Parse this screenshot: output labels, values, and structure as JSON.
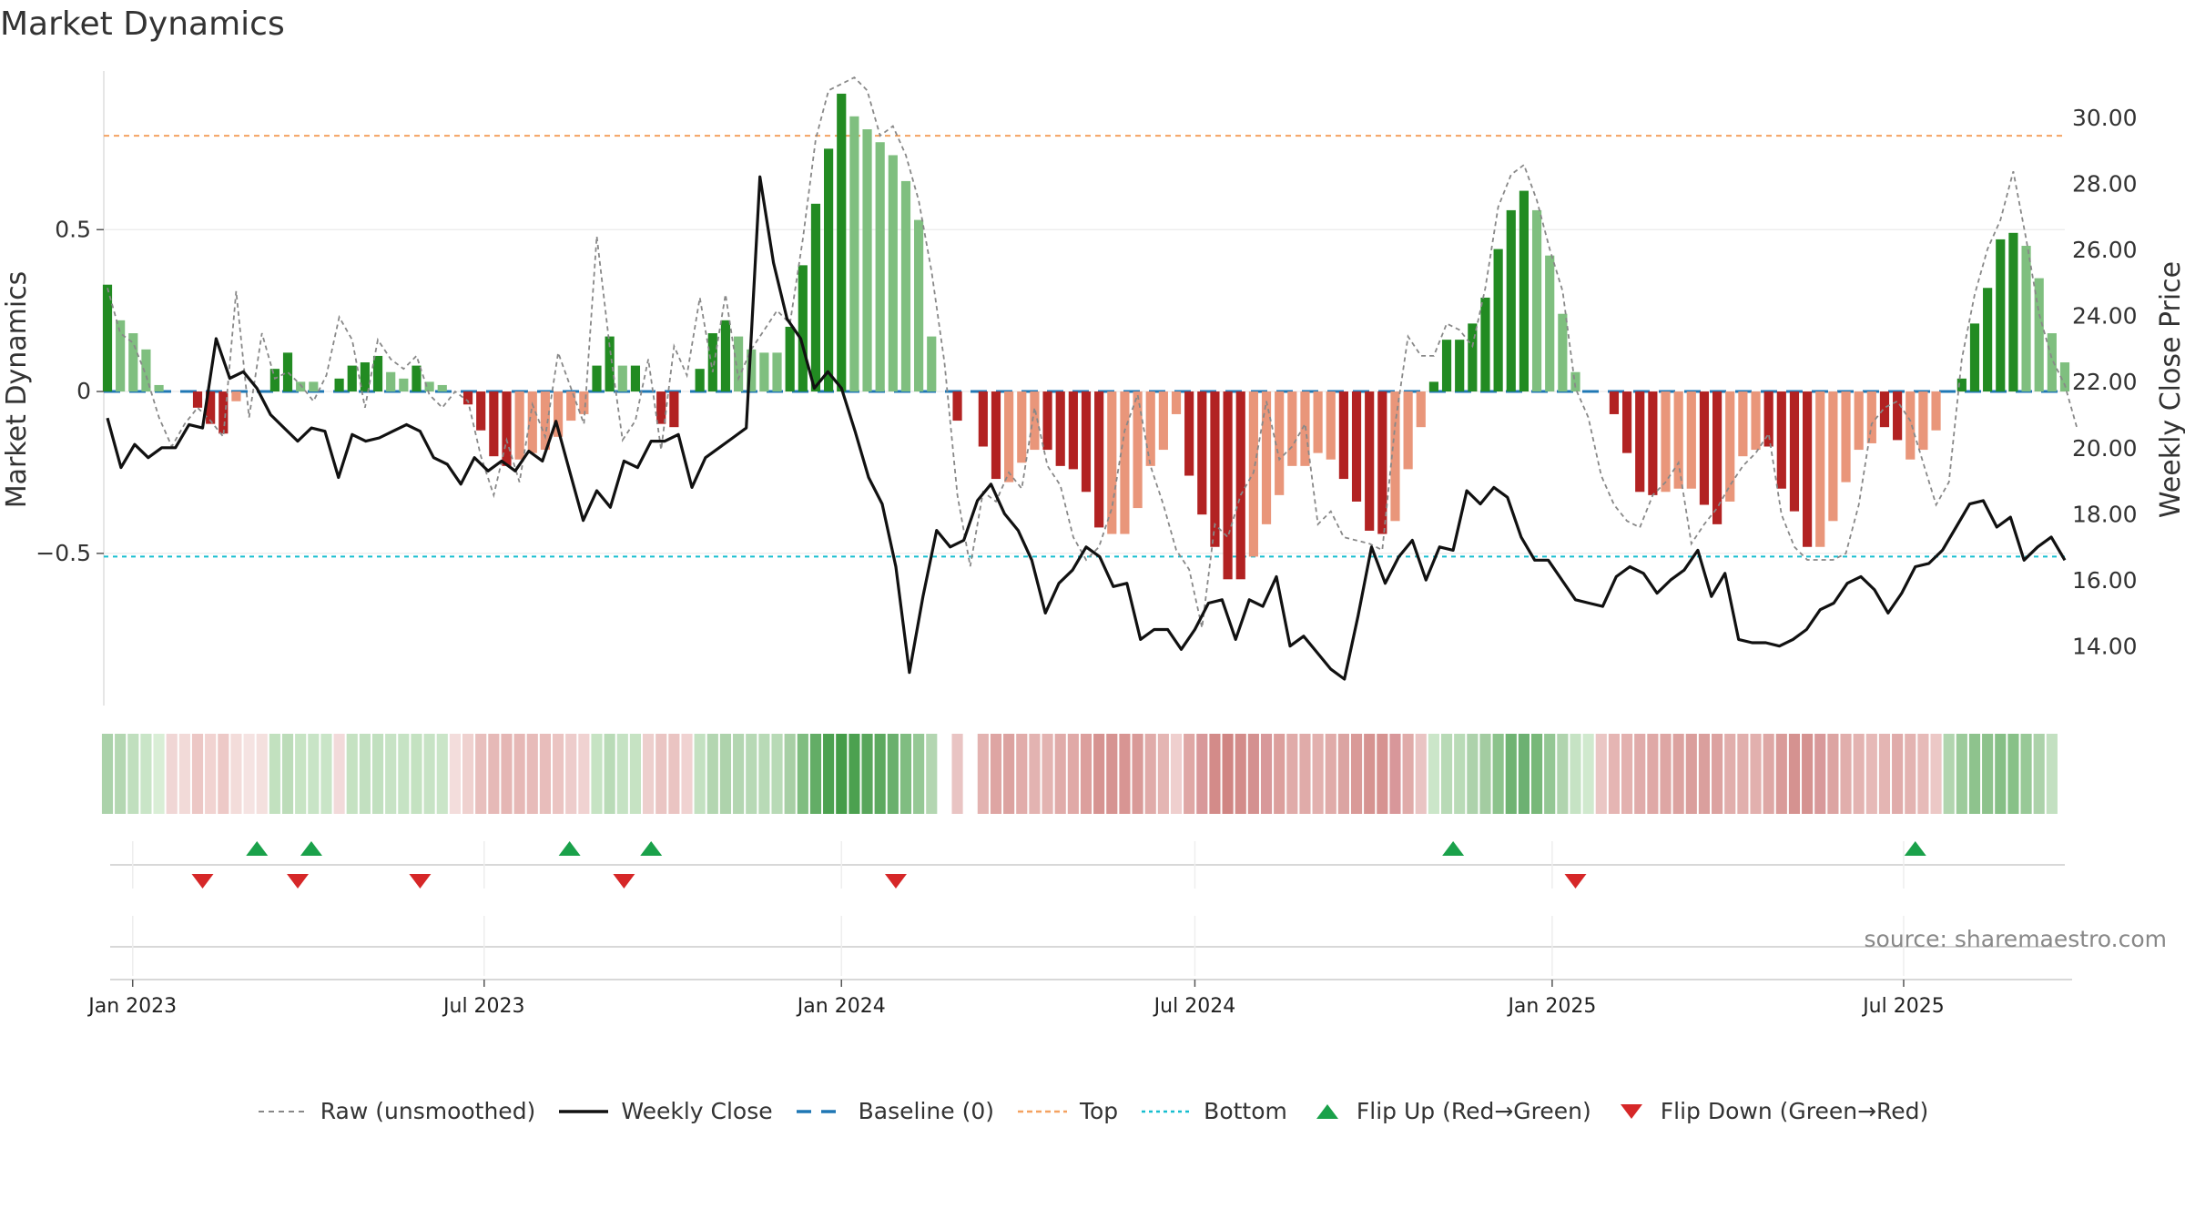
{
  "title": "Market Dynamics",
  "source": "source: sharemaestro.com",
  "colors": {
    "strong_green": "#228b22",
    "light_green": "#7fbf7f",
    "strong_red": "#b22222",
    "light_red": "#e9967a",
    "raw": "#888888",
    "close": "#111111",
    "baseline": "#1f77b4",
    "top": "#f4a261",
    "bottom": "#17becf",
    "flip_up": "#1aa14a",
    "flip_down": "#d62728"
  },
  "legend": [
    {
      "label": "Raw (unsmoothed)",
      "icon": "dashed-gray-line"
    },
    {
      "label": "Weekly Close",
      "icon": "solid-black-line"
    },
    {
      "label": "Baseline (0)",
      "icon": "dashed-blue-line"
    },
    {
      "label": "Top",
      "icon": "dashed-orange-line"
    },
    {
      "label": "Bottom",
      "icon": "dotted-cyan-line"
    },
    {
      "label": "Flip Up (Red→Green)",
      "icon": "triangle-up-icon"
    },
    {
      "label": "Flip Down (Green→Red)",
      "icon": "triangle-down-icon"
    }
  ],
  "chart_data": {
    "type": "bar",
    "title": "Market Dynamics",
    "ylabel": "Market Dynamics",
    "y2label": "Weekly Close Price",
    "ylim": [
      -0.97,
      0.99
    ],
    "y2lim": [
      12.2,
      31.4
    ],
    "yticks": [
      0.5,
      0,
      -0.5
    ],
    "ytick_labels": [
      "0.5",
      "0",
      "−0.5"
    ],
    "y2ticks": [
      30,
      28,
      26,
      24,
      22,
      20,
      18,
      16,
      14
    ],
    "y2tick_labels": [
      "30.00",
      "28.00",
      "26.00",
      "24.00",
      "22.00",
      "20.00",
      "18.00",
      "16.00",
      "14.00"
    ],
    "x_start": "2022-12-19",
    "x_end": "2025-09-22",
    "xtick_dates": [
      "2023-01-01",
      "2023-07-01",
      "2024-01-01",
      "2024-07-01",
      "2025-01-01",
      "2025-07-01"
    ],
    "xtick_labels": [
      "Jan 2023",
      "Jul 2023",
      "Jan 2024",
      "Jul 2024",
      "Jan 2025",
      "Jul 2025"
    ],
    "top_level": 0.79,
    "bottom_level": -0.51,
    "baseline": 0,
    "bars": [
      0.33,
      0.22,
      0.18,
      0.13,
      0.02,
      0,
      0,
      -0.05,
      -0.1,
      -0.13,
      -0.03,
      0,
      0,
      0.07,
      0.12,
      0.03,
      0.03,
      0,
      0.04,
      0.08,
      0.09,
      0.11,
      0.06,
      0.04,
      0.08,
      0.03,
      0.02,
      0,
      -0.04,
      -0.12,
      -0.2,
      -0.23,
      -0.21,
      -0.19,
      -0.18,
      -0.14,
      -0.09,
      -0.07,
      0.08,
      0.17,
      0.08,
      0.08,
      0,
      -0.1,
      -0.11,
      0,
      0.07,
      0.18,
      0.22,
      0.17,
      0.13,
      0.12,
      0.12,
      0.2,
      0.39,
      0.58,
      0.75,
      0.92,
      0.85,
      0.81,
      0.77,
      0.73,
      0.65,
      0.53,
      0.17,
      0,
      -0.09,
      0,
      -0.17,
      -0.27,
      -0.28,
      -0.22,
      -0.18,
      -0.18,
      -0.23,
      -0.24,
      -0.31,
      -0.42,
      -0.44,
      -0.44,
      -0.36,
      -0.23,
      -0.18,
      -0.07,
      -0.26,
      -0.38,
      -0.48,
      -0.58,
      -0.58,
      -0.51,
      -0.41,
      -0.32,
      -0.23,
      -0.23,
      -0.19,
      -0.21,
      -0.27,
      -0.34,
      -0.43,
      -0.44,
      -0.4,
      -0.24,
      -0.11,
      0.03,
      0.16,
      0.16,
      0.21,
      0.29,
      0.44,
      0.56,
      0.62,
      0.56,
      0.42,
      0.24,
      0.06,
      0,
      0,
      -0.07,
      -0.19,
      -0.31,
      -0.32,
      -0.31,
      -0.3,
      -0.3,
      -0.35,
      -0.41,
      -0.34,
      -0.2,
      -0.18,
      -0.17,
      -0.3,
      -0.37,
      -0.48,
      -0.48,
      -0.4,
      -0.28,
      -0.18,
      -0.16,
      -0.11,
      -0.15,
      -0.21,
      -0.18,
      -0.12,
      0,
      0.04,
      0.21,
      0.32,
      0.47,
      0.49,
      0.45,
      0.35,
      0.18,
      0.09
    ],
    "bar_strength": [
      1,
      0,
      0,
      0,
      0,
      0,
      0,
      1,
      1,
      1,
      0,
      0,
      0,
      1,
      1,
      0,
      0,
      0,
      1,
      1,
      1,
      1,
      0,
      0,
      1,
      0,
      0,
      0,
      1,
      1,
      1,
      1,
      0,
      0,
      0,
      0,
      0,
      0,
      1,
      1,
      0,
      1,
      0,
      1,
      1,
      0,
      1,
      1,
      1,
      0,
      0,
      0,
      0,
      1,
      1,
      1,
      1,
      1,
      0,
      0,
      0,
      0,
      0,
      0,
      0,
      0,
      1,
      0,
      1,
      1,
      0,
      0,
      0,
      1,
      1,
      1,
      1,
      1,
      0,
      0,
      0,
      0,
      0,
      0,
      1,
      1,
      1,
      1,
      1,
      0,
      0,
      0,
      0,
      0,
      0,
      0,
      1,
      1,
      1,
      1,
      0,
      0,
      0,
      1,
      1,
      1,
      1,
      1,
      1,
      1,
      1,
      0,
      0,
      0,
      0,
      0,
      0,
      1,
      1,
      1,
      1,
      0,
      0,
      0,
      1,
      1,
      0,
      0,
      0,
      1,
      1,
      1,
      1,
      0,
      0,
      0,
      0,
      0,
      1,
      1,
      0,
      0,
      0,
      0,
      1,
      1,
      1,
      1,
      1,
      0,
      0,
      0,
      0
    ],
    "raw": [
      0.32,
      0.18,
      0.15,
      0.05,
      -0.08,
      -0.17,
      -0.1,
      -0.05,
      -0.09,
      -0.14,
      0.31,
      -0.08,
      0.18,
      0.04,
      0.06,
      0.02,
      -0.03,
      0.05,
      0.23,
      0.16,
      -0.05,
      0.16,
      0.1,
      0.07,
      0.11,
      -0.01,
      -0.05,
      0,
      -0.03,
      -0.2,
      -0.32,
      -0.15,
      -0.28,
      -0.04,
      -0.14,
      0.12,
      0.01,
      -0.1,
      0.48,
      0.14,
      -0.15,
      -0.09,
      0.1,
      -0.18,
      0.14,
      0.05,
      0.29,
      0.06,
      0.3,
      0.04,
      0.13,
      0.19,
      0.25,
      0.21,
      0.47,
      0.78,
      0.93,
      0.95,
      0.97,
      0.93,
      0.79,
      0.82,
      0.73,
      0.59,
      0.37,
      0.09,
      -0.32,
      -0.54,
      -0.31,
      -0.34,
      -0.25,
      -0.3,
      -0.05,
      -0.23,
      -0.29,
      -0.45,
      -0.52,
      -0.48,
      -0.36,
      -0.12,
      -0.01,
      -0.23,
      -0.35,
      -0.49,
      -0.55,
      -0.73,
      -0.41,
      -0.45,
      -0.32,
      -0.25,
      -0.03,
      -0.21,
      -0.17,
      -0.1,
      -0.41,
      -0.37,
      -0.45,
      -0.46,
      -0.47,
      -0.49,
      -0.1,
      0.17,
      0.11,
      0.11,
      0.21,
      0.19,
      0.14,
      0.32,
      0.57,
      0.67,
      0.7,
      0.59,
      0.44,
      0.31,
      0.01,
      -0.08,
      -0.26,
      -0.35,
      -0.4,
      -0.42,
      -0.32,
      -0.28,
      -0.22,
      -0.47,
      -0.41,
      -0.36,
      -0.29,
      -0.23,
      -0.19,
      -0.13,
      -0.38,
      -0.48,
      -0.52,
      -0.52,
      -0.52,
      -0.5,
      -0.35,
      -0.1,
      -0.05,
      -0.03,
      -0.09,
      -0.22,
      -0.35,
      -0.28,
      0.1,
      0.3,
      0.44,
      0.53,
      0.68,
      0.47,
      0.24,
      0.1,
      0.02,
      -0.12
    ],
    "close": [
      20.9,
      19.4,
      20.1,
      19.7,
      20.0,
      20.0,
      20.7,
      20.6,
      23.3,
      22.1,
      22.3,
      21.8,
      21.0,
      20.6,
      20.2,
      20.6,
      20.5,
      19.1,
      20.4,
      20.2,
      20.3,
      20.5,
      20.7,
      20.5,
      19.7,
      19.5,
      18.9,
      19.7,
      19.3,
      19.6,
      19.3,
      19.9,
      19.6,
      20.8,
      19.3,
      17.8,
      18.7,
      18.2,
      19.6,
      19.4,
      20.2,
      20.2,
      20.4,
      18.8,
      19.7,
      20.0,
      20.3,
      20.6,
      28.2,
      25.6,
      23.9,
      23.3,
      21.8,
      22.3,
      21.8,
      20.5,
      19.1,
      18.3,
      16.4,
      13.2,
      15.5,
      17.5,
      17.0,
      17.2,
      18.4,
      18.9,
      18.0,
      17.5,
      16.6,
      15.0,
      15.9,
      16.3,
      17.0,
      16.7,
      15.8,
      15.9,
      14.2,
      14.5,
      14.5,
      13.9,
      14.5,
      15.3,
      15.4,
      14.2,
      15.4,
      15.2,
      16.1,
      14.0,
      14.3,
      13.8,
      13.3,
      13.0,
      14.9,
      17.0,
      15.9,
      16.7,
      17.2,
      16.0,
      17.0,
      16.9,
      18.7,
      18.3,
      18.8,
      18.5,
      17.3,
      16.6,
      16.6,
      16.0,
      15.4,
      15.3,
      15.2,
      16.1,
      16.4,
      16.2,
      15.6,
      16.0,
      16.3,
      16.9,
      15.5,
      16.2,
      14.2,
      14.1,
      14.1,
      14.0,
      14.2,
      14.5,
      15.1,
      15.3,
      15.9,
      16.1,
      15.7,
      15.0,
      15.6,
      16.4,
      16.5,
      16.9,
      17.6,
      18.3,
      18.4,
      17.6,
      17.9,
      16.6,
      17.0,
      17.3,
      16.6
    ],
    "flip_up_dates": [
      "2023-03-06",
      "2023-04-03",
      "2023-08-14",
      "2023-09-25",
      "2024-11-11",
      "2025-07-07"
    ],
    "flip_down_dates": [
      "2023-02-06",
      "2023-03-27",
      "2023-05-29",
      "2023-09-11",
      "2024-01-29",
      "2025-01-13"
    ],
    "strip_colors": [
      "#abd2aa",
      "#b4d7b2",
      "#c0dfbe",
      "#c9e5c7",
      "#d9eed6",
      "#f0d6d5",
      "#f2dad8",
      "#ecc7c5",
      "#f1d3d1",
      "#edc9c7",
      "#f3dcda",
      "#f5e3e2",
      "#f4e0de",
      "#c2e1bf",
      "#bcdcb9",
      "#c7e4c4",
      "#c8e4c6",
      "#c9e5c7",
      "#f2dada",
      "#c5e2c2",
      "#c2e0c0",
      "#c1e0bf",
      "#c7e3c5",
      "#c6e3c4",
      "#c4e2c1",
      "#c7e3c5",
      "#cae5c8",
      "#f3dddc",
      "#efd1cf",
      "#e8bfbd",
      "#e6b9b7",
      "#e5b6b4",
      "#e6b8b6",
      "#e7bbb9",
      "#e8bdbb",
      "#ebc4c2",
      "#edcccb",
      "#f0d2d1",
      "#c6e3c3",
      "#b9dbb7",
      "#c5e2c3",
      "#c6e3c3",
      "#edcfcd",
      "#eac5c3",
      "#eac4c2",
      "#f0d2d1",
      "#c3e1c1",
      "#b3d6b1",
      "#aed3ac",
      "#b3d6b1",
      "#b7d9b5",
      "#b8dab6",
      "#b8dab6",
      "#a7cfa5",
      "#7fbd80",
      "#63ad66",
      "#4ca150",
      "#449c48",
      "#4ca150",
      "#58a65b",
      "#5ca95f",
      "#6ab06d",
      "#80bd81",
      "#95c895",
      "#b3d6b1",
      "#ffffff",
      "#e9c4c3",
      "#ffffff",
      "#e3b3b1",
      "#dea5a3",
      "#dca2a0",
      "#e1acaa",
      "#e3b3b1",
      "#e3b3b1",
      "#e0aba9",
      "#e0a9a7",
      "#dc9f9d",
      "#d69391",
      "#d69391",
      "#d89593",
      "#d99a98",
      "#e0aba9",
      "#e4b5b3",
      "#efcfce",
      "#dfa7a5",
      "#d8989a",
      "#d38b89",
      "#d08583",
      "#d38c8a",
      "#d49190",
      "#d8989a",
      "#dc9f9d",
      "#e0aba9",
      "#e0aba9",
      "#e2b0ae",
      "#e0aba9",
      "#dba4a2",
      "#d99a98",
      "#d69391",
      "#d69391",
      "#d8979a",
      "#e0aba9",
      "#e9c4c3",
      "#cbe6c9",
      "#b8dab6",
      "#b9dbb7",
      "#add2ab",
      "#a3cca1",
      "#8cc38c",
      "#6fb372",
      "#6db172",
      "#78b879",
      "#94c794",
      "#b0d4ae",
      "#c6e3c4",
      "#d0e9ce",
      "#eac6c4",
      "#e5b5b3",
      "#e3b1af",
      "#e0abaa",
      "#dfa8a6",
      "#dea6a4",
      "#dca2a0",
      "#da9e9c",
      "#da9f9d",
      "#dca2a0",
      "#e1aeac",
      "#e1afad",
      "#e2b0ae",
      "#dea7a5",
      "#d99b99",
      "#d59290",
      "#d59290",
      "#d8999a",
      "#dca4a2",
      "#e1aeac",
      "#e3b3b1",
      "#e6b9b7",
      "#e4b5b3",
      "#e0abaa",
      "#e3b3b1",
      "#e6bab8",
      "#ecc8c6",
      "#b1d5af",
      "#9ccb9b",
      "#8ec38d",
      "#8dc28c",
      "#86bf86",
      "#88c188",
      "#98c997",
      "#acd2aa",
      "#c3e0c1"
    ]
  }
}
